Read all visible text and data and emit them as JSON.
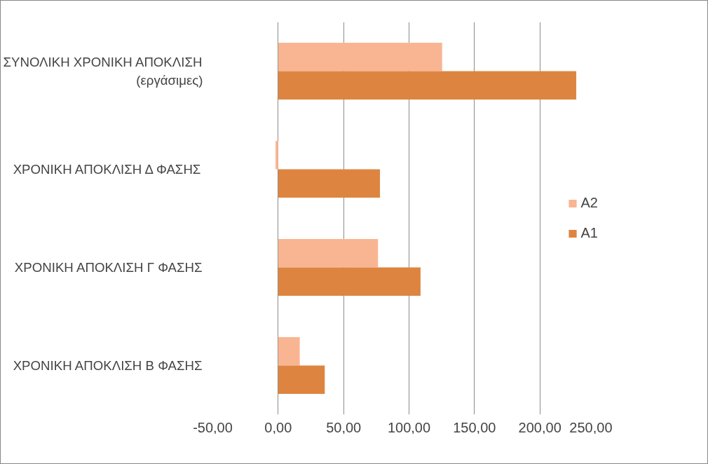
{
  "chart_data": {
    "type": "bar",
    "orientation": "horizontal",
    "categories": [
      "ΣΥΝΟΛΙΚΗ ΧΡΟΝΙΚΗ ΑΠΟΚΛΙΣΗ\n(εργάσιμες)",
      "ΧΡΟΝΙΚΗ ΑΠΟΚΛΙΣΗ Δ ΦΑΣΗΣ",
      "ΧΡΟΝΙΚΗ ΑΠΟΚΛΙΣΗ Γ ΦΑΣΗΣ",
      "ΧΡΟΝΙΚΗ ΑΠΟΚΛΙΣΗ Β ΦΑΣΗΣ"
    ],
    "series": [
      {
        "name": "A2",
        "color": "#f9b592",
        "values": [
          125.3,
          -2,
          76.3,
          16.5
        ]
      },
      {
        "name": "A1",
        "color": "#dd8540",
        "values": [
          227.8,
          77.8,
          108.8,
          35.6
        ]
      }
    ],
    "xlim": [
      -50,
      250
    ],
    "xticks": [
      {
        "value": -50,
        "label": "-50,00"
      },
      {
        "value": 0,
        "label": "0,00"
      },
      {
        "value": 50,
        "label": "50,00"
      },
      {
        "value": 100,
        "label": "100,00"
      },
      {
        "value": 150,
        "label": "150,00"
      },
      {
        "value": 200,
        "label": "200,00"
      },
      {
        "value": 250,
        "label": "250,00"
      }
    ],
    "grid": "x",
    "legend": "right"
  }
}
